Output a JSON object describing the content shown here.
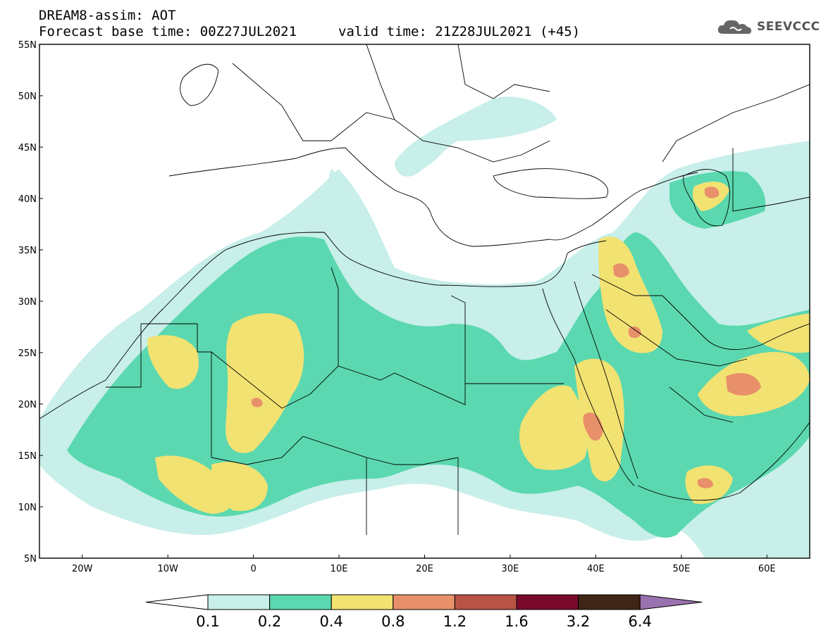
{
  "header": {
    "title": "DREAM8-assim: AOT",
    "base_time": "Forecast base time: 00Z27JUL2021",
    "valid_time": "valid time: 21Z28JUL2021 (+45)"
  },
  "logo": {
    "text": "SEEVCCC",
    "icon": "cloud-icon"
  },
  "map": {
    "lon_range": [
      -25,
      65
    ],
    "lat_range": [
      5,
      55
    ],
    "lat_ticks": [
      {
        "value": 55,
        "label": "55N"
      },
      {
        "value": 50,
        "label": "50N"
      },
      {
        "value": 45,
        "label": "45N"
      },
      {
        "value": 40,
        "label": "40N"
      },
      {
        "value": 35,
        "label": "35N"
      },
      {
        "value": 30,
        "label": "30N"
      },
      {
        "value": 25,
        "label": "25N"
      },
      {
        "value": 20,
        "label": "20N"
      },
      {
        "value": 15,
        "label": "15N"
      },
      {
        "value": 10,
        "label": "10N"
      },
      {
        "value": 5,
        "label": "5N"
      }
    ],
    "lon_ticks": [
      {
        "value": -20,
        "label": "20W"
      },
      {
        "value": -10,
        "label": "10W"
      },
      {
        "value": 0,
        "label": "0"
      },
      {
        "value": 10,
        "label": "10E"
      },
      {
        "value": 20,
        "label": "20E"
      },
      {
        "value": 30,
        "label": "30E"
      },
      {
        "value": 40,
        "label": "40E"
      },
      {
        "value": 50,
        "label": "50E"
      },
      {
        "value": 60,
        "label": "60E"
      }
    ]
  },
  "colorbar": {
    "labels": [
      "0.1",
      "0.2",
      "0.4",
      "0.8",
      "1.2",
      "1.6",
      "3.2",
      "6.4"
    ],
    "colors": [
      "#ffffff",
      "#c8efe9",
      "#5bd8b0",
      "#f2e272",
      "#e8906a",
      "#b85446",
      "#7a0a2c",
      "#3e2515",
      "#9b72b0"
    ]
  }
}
